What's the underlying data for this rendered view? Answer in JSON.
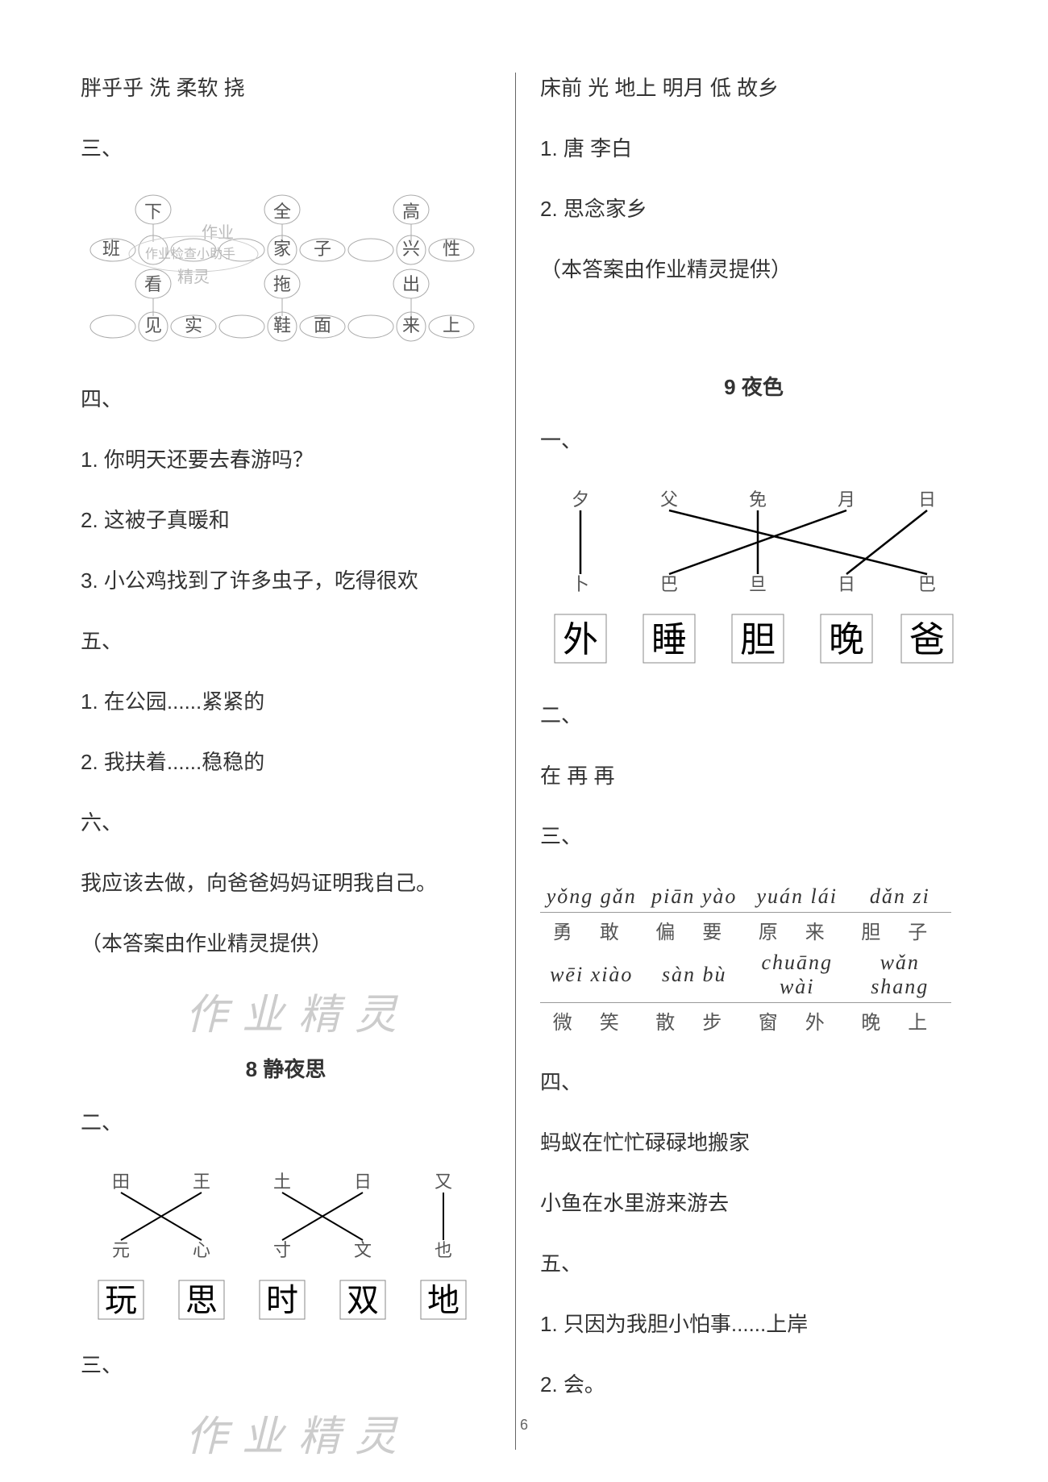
{
  "left": {
    "line1": "胖乎乎 洗 柔软 挠",
    "sec3": "三、",
    "flowers": {
      "top_row": [
        "下",
        "全",
        "高"
      ],
      "mid_row_large": [
        "班",
        "家",
        "兴"
      ],
      "mid_row_small_after": [
        "子",
        "性"
      ],
      "bottom_flowers": [
        "看",
        "拖",
        "出"
      ],
      "bottom_large": [
        "见",
        "鞋",
        "来"
      ],
      "bottom_small": [
        "实",
        "面",
        "上"
      ],
      "watermark1": "作业",
      "watermark2": "作业检查小助手",
      "watermark3": "精灵"
    },
    "sec4": "四、",
    "q4_1": "1. 你明天还要去春游吗？",
    "q4_2": "2. 这被子真暖和",
    "q4_3": "3. 小公鸡找到了许多虫子，吃得很欢",
    "sec5": "五、",
    "q5_1": "1. 在公园......紧紧的",
    "q5_2": "2. 我扶着......稳稳的",
    "sec6": "六、",
    "q6_text": "我应该去做，向爸爸妈妈证明我自己。",
    "provider": "（本答案由作业精灵提供）",
    "watermark_a": "作业精灵",
    "title8": "8 静夜思",
    "sec2b": "二、",
    "match8": {
      "top": [
        "田",
        "王",
        "土",
        "日",
        "又"
      ],
      "bottom": [
        "元",
        "心",
        "寸",
        "文",
        "也"
      ],
      "boxes": [
        "玩",
        "思",
        "时",
        "双",
        "地"
      ],
      "lines": [
        [
          0,
          1
        ],
        [
          1,
          0
        ],
        [
          2,
          3
        ],
        [
          3,
          2
        ],
        [
          4,
          4
        ]
      ]
    },
    "sec3b": "三、",
    "watermark_b": "作业精灵"
  },
  "right": {
    "line1": "床前 光 地上 明月 低 故乡",
    "q1": "1. 唐 李白",
    "q2": "2. 思念家乡",
    "provider": "（本答案由作业精灵提供）",
    "title9": "9 夜色",
    "sec1": "一、",
    "match9": {
      "top": [
        "夕",
        "父",
        "免",
        "月",
        "日"
      ],
      "bottom": [
        "卜",
        "巴",
        "旦",
        "日",
        "巴"
      ],
      "boxes": [
        "外",
        "睡",
        "胆",
        "晚",
        "爸"
      ],
      "lines": [
        [
          0,
          0
        ],
        [
          1,
          4
        ],
        [
          2,
          2
        ],
        [
          3,
          1
        ],
        [
          4,
          3
        ]
      ]
    },
    "sec2": "二、",
    "line2": "在 再 再",
    "sec3": "三、",
    "pinyin": {
      "row1_pinyin": [
        "yǒng gǎn",
        "piān yào",
        "yuán lái",
        "dǎn zi"
      ],
      "row1_hanzi": [
        "勇 敢",
        "偏 要",
        "原 来",
        "胆 子"
      ],
      "row2_pinyin": [
        "wēi xiào",
        "sàn bù",
        "chuāng wài",
        "wǎn shang"
      ],
      "row2_hanzi": [
        "微 笑",
        "散 步",
        "窗 外",
        "晚 上"
      ]
    },
    "sec4": "四、",
    "q4_1": "蚂蚁在忙忙碌碌地搬家",
    "q4_2": "小鱼在水里游来游去",
    "sec5": "五、",
    "q5_1": "1. 只因为我胆小怕事......上岸",
    "q5_2": "2. 会。"
  },
  "pageNum": "6",
  "colors": {
    "text": "#333333",
    "line": "#000000",
    "box": "#888888",
    "wm": "#cccccc",
    "faint": "#666666"
  }
}
